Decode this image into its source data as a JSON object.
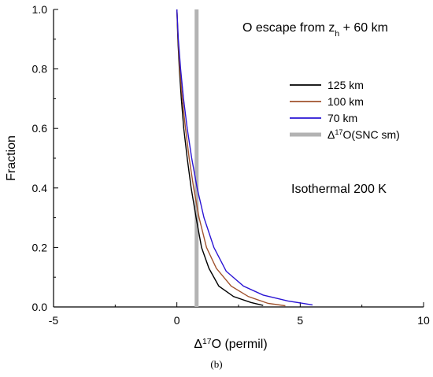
{
  "chart_data": {
    "type": "line",
    "annotations": {
      "top_right_prefix": "O escape from z",
      "top_right_sub": "h",
      "top_right_suffix": "+ 60 km",
      "condition": "Isothermal 200 K"
    },
    "xlabel": {
      "delta": "Δ",
      "sup": "17",
      "rest": "O (permil)"
    },
    "ylabel": "Fraction",
    "xlim": [
      -5,
      10
    ],
    "ylim": [
      0.0,
      1.0
    ],
    "xticks": [
      "-5",
      "0",
      "5",
      "10"
    ],
    "yticks": [
      "0.0",
      "0.2",
      "0.4",
      "0.6",
      "0.8",
      "1.0"
    ],
    "reference_line": {
      "x": 0.8,
      "color": "#b3b3b3",
      "legend": {
        "delta": "Δ",
        "sup": "17",
        "rest": "O(SNC sm)"
      }
    },
    "series": [
      {
        "name": "125 km",
        "color": "#000000",
        "points": [
          [
            0.0,
            1.0
          ],
          [
            0.04,
            0.9
          ],
          [
            0.1,
            0.8
          ],
          [
            0.18,
            0.7
          ],
          [
            0.28,
            0.6
          ],
          [
            0.42,
            0.5
          ],
          [
            0.58,
            0.4
          ],
          [
            0.78,
            0.3
          ],
          [
            1.0,
            0.2
          ],
          [
            1.3,
            0.13
          ],
          [
            1.7,
            0.07
          ],
          [
            2.3,
            0.035
          ],
          [
            3.0,
            0.015
          ],
          [
            3.5,
            0.005
          ]
        ]
      },
      {
        "name": "100 km",
        "color": "#a0522d",
        "points": [
          [
            0.0,
            1.0
          ],
          [
            0.05,
            0.9
          ],
          [
            0.12,
            0.8
          ],
          [
            0.22,
            0.7
          ],
          [
            0.35,
            0.6
          ],
          [
            0.5,
            0.5
          ],
          [
            0.68,
            0.4
          ],
          [
            0.9,
            0.3
          ],
          [
            1.2,
            0.2
          ],
          [
            1.6,
            0.13
          ],
          [
            2.2,
            0.07
          ],
          [
            2.9,
            0.035
          ],
          [
            3.7,
            0.012
          ],
          [
            4.4,
            0.004
          ]
        ]
      },
      {
        "name": "70 km",
        "color": "#2a14d4",
        "points": [
          [
            0.0,
            1.0
          ],
          [
            0.06,
            0.9
          ],
          [
            0.15,
            0.8
          ],
          [
            0.27,
            0.7
          ],
          [
            0.42,
            0.6
          ],
          [
            0.6,
            0.5
          ],
          [
            0.82,
            0.4
          ],
          [
            1.1,
            0.3
          ],
          [
            1.5,
            0.2
          ],
          [
            2.0,
            0.12
          ],
          [
            2.7,
            0.07
          ],
          [
            3.5,
            0.04
          ],
          [
            4.5,
            0.02
          ],
          [
            5.5,
            0.007
          ]
        ]
      }
    ]
  },
  "caption": "(b)"
}
